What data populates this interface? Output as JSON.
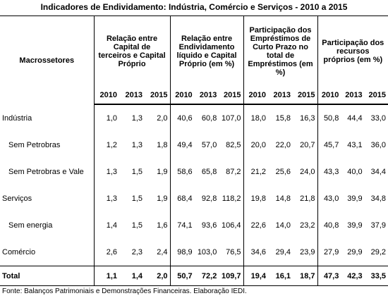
{
  "title": "Indicadores de Endividamento:  Indústria, Comércio e Serviços - 2010 a 2015",
  "table": {
    "row_header": "Macrossetores",
    "groups": [
      {
        "label": "Relação entre Capital de terceiros e Capital Próprio",
        "years": [
          "2010",
          "2013",
          "2015"
        ]
      },
      {
        "label": "Relação entre Endividamento líquido e Capital Próprio (em %)",
        "years": [
          "2010",
          "2013",
          "2015"
        ]
      },
      {
        "label": "Participação dos Empréstimos de Curto Prazo no total de Empréstimos (em %)",
        "years": [
          "2010",
          "2013",
          "2015"
        ]
      },
      {
        "label": "Participação dos recursos próprios (em %)",
        "years": [
          "2010",
          "2013",
          "2015"
        ]
      }
    ],
    "rows": [
      {
        "label": "Indústria",
        "values": [
          "1,0",
          "1,3",
          "2,0",
          "40,6",
          "60,8",
          "107,0",
          "18,0",
          "15,8",
          "16,3",
          "50,8",
          "44,4",
          "33,0"
        ],
        "subrows": [
          {
            "label": "Sem Petrobras",
            "values": [
              "1,2",
              "1,3",
              "1,8",
              "49,4",
              "57,0",
              "82,5",
              "20,0",
              "22,0",
              "20,7",
              "45,7",
              "43,1",
              "36,0"
            ]
          },
          {
            "label": "Sem Petrobras e Vale",
            "values": [
              "1,3",
              "1,5",
              "1,9",
              "58,6",
              "65,8",
              "87,2",
              "21,2",
              "25,6",
              "24,0",
              "43,3",
              "40,0",
              "34,4"
            ]
          }
        ]
      },
      {
        "label": "Serviços",
        "values": [
          "1,3",
          "1,5",
          "1,9",
          "68,4",
          "92,8",
          "118,2",
          "19,8",
          "14,8",
          "21,8",
          "43,0",
          "39,9",
          "34,8"
        ],
        "subrows": [
          {
            "label": "Sem energia",
            "values": [
              "1,4",
              "1,5",
              "1,6",
              "74,1",
              "93,6",
              "106,4",
              "22,6",
              "14,0",
              "23,2",
              "40,8",
              "39,9",
              "37,9"
            ]
          }
        ]
      },
      {
        "label": "Comércio",
        "values": [
          "2,6",
          "2,3",
          "2,4",
          "98,9",
          "103,0",
          "76,5",
          "34,6",
          "29,4",
          "23,9",
          "27,9",
          "29,9",
          "29,2"
        ],
        "subrows": []
      }
    ],
    "total": {
      "label": "Total",
      "values": [
        "1,1",
        "1,4",
        "2,0",
        "50,7",
        "72,2",
        "109,7",
        "19,4",
        "16,1",
        "18,7",
        "47,3",
        "42,3",
        "33,5"
      ]
    }
  },
  "source": "Fonte: Balanços Patrimoniais e Demonstrações Financeiras. Elaboração IEDI."
}
